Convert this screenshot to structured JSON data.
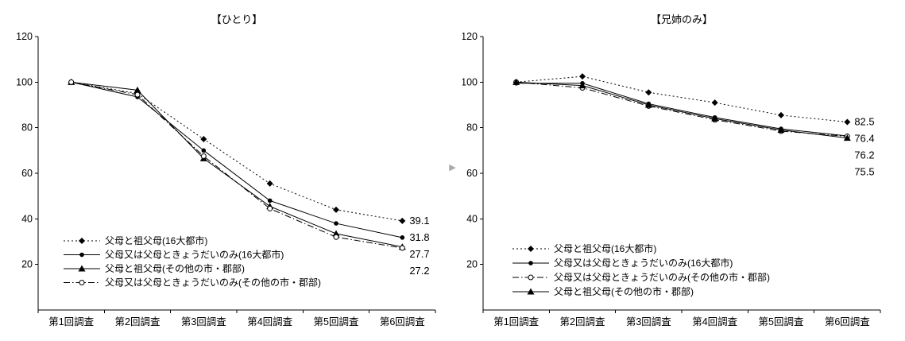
{
  "divider": {
    "glyph": "▶",
    "color": "#a9a9a9"
  },
  "chart_data": [
    {
      "type": "line",
      "title": "【ひとり】",
      "categories": [
        "第1回調査",
        "第2回調査",
        "第3回調査",
        "第4回調査",
        "第5回調査",
        "第6回調査"
      ],
      "xlabel": "",
      "ylabel": "",
      "ylim": [
        0,
        120
      ],
      "yticks": [
        20,
        40,
        60,
        80,
        100,
        120
      ],
      "grid": false,
      "legend_position": "inside-lower-left",
      "line_color": "#000000",
      "series": [
        {
          "name": "父母と祖父母(16大都市)",
          "marker": "diamond",
          "line": "dotted",
          "values": [
            100,
            95,
            75,
            55.5,
            44,
            39.1
          ],
          "end_label": "39.1"
        },
        {
          "name": "父母又は父母ときょうだいのみ(16大都市)",
          "marker": "circle",
          "line": "solid",
          "values": [
            100,
            93.5,
            70,
            48,
            38,
            31.8
          ],
          "end_label": "31.8"
        },
        {
          "name": "父母と祖父母(その他の市・郡部)",
          "marker": "triangle",
          "line": "solid",
          "values": [
            100,
            96.5,
            66.5,
            45.5,
            33.5,
            27.7
          ],
          "end_label": "27.7"
        },
        {
          "name": "父母又は父母ときょうだいのみ(その他の市・郡部)",
          "marker": "open-circle",
          "line": "dashdot",
          "values": [
            100,
            94.5,
            67.5,
            44.5,
            32,
            27.2
          ],
          "end_label": "27.2"
        }
      ]
    },
    {
      "type": "line",
      "title": "【兄姉のみ】",
      "categories": [
        "第1回調査",
        "第2回調査",
        "第3回調査",
        "第4回調査",
        "第5回調査",
        "第6回調査"
      ],
      "xlabel": "",
      "ylabel": "",
      "ylim": [
        0,
        120
      ],
      "yticks": [
        20,
        40,
        60,
        80,
        100,
        120
      ],
      "grid": false,
      "legend_position": "inside-lower-left",
      "line_color": "#000000",
      "series": [
        {
          "name": "父母と祖父母(16大都市)",
          "marker": "diamond",
          "line": "dotted",
          "values": [
            100,
            102.5,
            95.5,
            91,
            85.5,
            82.5
          ],
          "end_label": "82.5"
        },
        {
          "name": "父母又は父母ときょうだいのみ(16大都市)",
          "marker": "circle",
          "line": "solid",
          "values": [
            99.5,
            99.5,
            90.5,
            84.5,
            79.5,
            76.4
          ],
          "end_label": "76.4"
        },
        {
          "name": "父母又は父母ときょうだいのみ(その他の市・郡部)",
          "marker": "open-circle",
          "line": "dashdot",
          "values": [
            100,
            97.5,
            89.5,
            83.5,
            78.5,
            76.2
          ],
          "end_label": "76.2"
        },
        {
          "name": "父母と祖父母(その他の市・郡部)",
          "marker": "triangle",
          "line": "solid",
          "values": [
            100,
            98.5,
            90,
            84,
            79,
            75.5
          ],
          "end_label": "75.5"
        }
      ]
    }
  ]
}
